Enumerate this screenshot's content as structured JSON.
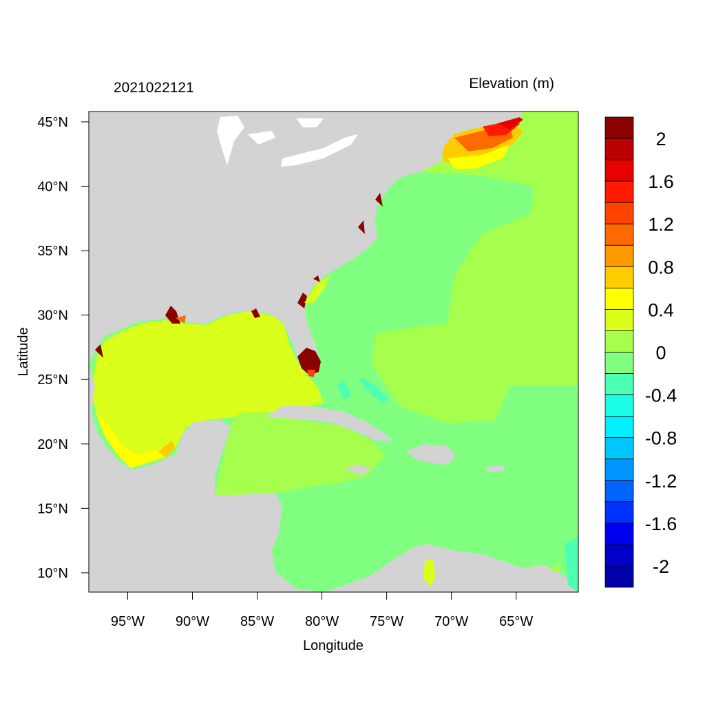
{
  "figure": {
    "left_title": "2021022121",
    "right_title": "Elevation (m)",
    "xlabel": "Longitude",
    "ylabel": "Latitude"
  },
  "map": {
    "lon_range": [
      -98,
      -60.2
    ],
    "lat_range": [
      8.5,
      45.8
    ],
    "x_ticks": [
      {
        "value": -95,
        "label": "95°W"
      },
      {
        "value": -90,
        "label": "90°W"
      },
      {
        "value": -85,
        "label": "85°W"
      },
      {
        "value": -80,
        "label": "80°W"
      },
      {
        "value": -75,
        "label": "75°W"
      },
      {
        "value": -70,
        "label": "70°W"
      },
      {
        "value": -65,
        "label": "65°W"
      }
    ],
    "y_ticks": [
      {
        "value": 45,
        "label": "45°N"
      },
      {
        "value": 40,
        "label": "40°N"
      },
      {
        "value": 35,
        "label": "35°N"
      },
      {
        "value": 30,
        "label": "30°N"
      },
      {
        "value": 25,
        "label": "25°N"
      },
      {
        "value": 20,
        "label": "20°N"
      },
      {
        "value": 15,
        "label": "15°N"
      },
      {
        "value": 10,
        "label": "10°N"
      }
    ],
    "land_color": "#d3d3d3",
    "water_body_color": "#ffffff"
  },
  "colorbar": {
    "bins": [
      {
        "color": "#8b0000"
      },
      {
        "color": "#bb0000"
      },
      {
        "color": "#e60000"
      },
      {
        "color": "#ff1a00"
      },
      {
        "color": "#ff4400"
      },
      {
        "color": "#ff6a00"
      },
      {
        "color": "#ff9900"
      },
      {
        "color": "#ffcc00"
      },
      {
        "color": "#ffff00"
      },
      {
        "color": "#d9ff1a"
      },
      {
        "color": "#a6ff4d"
      },
      {
        "color": "#80ff80"
      },
      {
        "color": "#4dffb3"
      },
      {
        "color": "#1affe6"
      },
      {
        "color": "#00f0ff"
      },
      {
        "color": "#00c8ff"
      },
      {
        "color": "#0096ff"
      },
      {
        "color": "#0064ff"
      },
      {
        "color": "#0032ff"
      },
      {
        "color": "#0000f0"
      },
      {
        "color": "#0000c8"
      },
      {
        "color": "#0000a8"
      }
    ],
    "labels": [
      {
        "text": "2",
        "at": 1
      },
      {
        "text": "1.6",
        "at": 3
      },
      {
        "text": "1.2",
        "at": 5
      },
      {
        "text": "0.8",
        "at": 7
      },
      {
        "text": "0.4",
        "at": 9
      },
      {
        "text": "0",
        "at": 11
      },
      {
        "text": "-0.4",
        "at": 13
      },
      {
        "text": "-0.8",
        "at": 15
      },
      {
        "text": "-1.2",
        "at": 17
      },
      {
        "text": "-1.6",
        "at": 19
      },
      {
        "text": "-2",
        "at": 21
      }
    ]
  }
}
